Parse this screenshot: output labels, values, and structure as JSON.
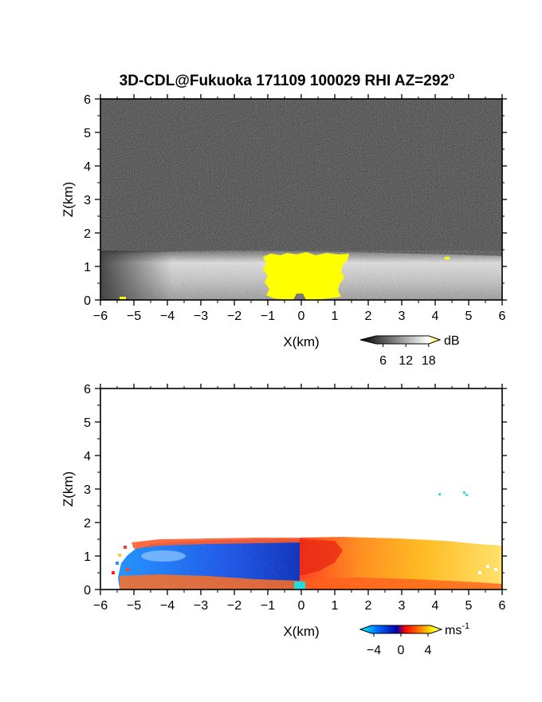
{
  "title": "3D-CDL@Fukuoka 171109 100029 RHI AZ=292",
  "title_suffix": "o",
  "chart_data": [
    {
      "type": "heatmap",
      "panel": "top",
      "quantity": "backscatter",
      "xlabel": "X(km)",
      "ylabel": "Z(km)",
      "xlim": [
        -6,
        6
      ],
      "ylim": [
        0,
        6
      ],
      "xticks": [
        -6,
        -5,
        -4,
        -3,
        -2,
        -1,
        0,
        1,
        2,
        3,
        4,
        5,
        6
      ],
      "yticks": [
        0,
        1,
        2,
        3,
        4,
        5,
        6
      ],
      "colorbar": {
        "unit": "dB",
        "ticks": [
          6,
          12,
          18
        ],
        "range": [
          0,
          21
        ],
        "colors": [
          "#000000",
          "#ffffff",
          "#ffff00"
        ]
      },
      "features": {
        "noise_floor_below_1_3km": "light grey to white",
        "noise_above_1_4km": "dark grey speckle",
        "boundary_layer_top_km": 1.35,
        "saturated_region": {
          "color": "#ffff00",
          "x_range": [
            -1.2,
            1.5
          ],
          "z_top": 1.35
        }
      }
    },
    {
      "type": "heatmap",
      "panel": "bottom",
      "quantity": "radial velocity",
      "xlabel": "X(km)",
      "ylabel": "Z(km)",
      "xlim": [
        -6,
        6
      ],
      "ylim": [
        0,
        6
      ],
      "xticks": [
        -6,
        -5,
        -4,
        -3,
        -2,
        -1,
        0,
        1,
        2,
        3,
        4,
        5,
        6
      ],
      "yticks": [
        0,
        1,
        2,
        3,
        4,
        5,
        6
      ],
      "colorbar": {
        "unit": "ms",
        "unit_exp": "-1",
        "ticks": [
          -4,
          0,
          4
        ],
        "range": [
          -6,
          6
        ],
        "colors": [
          "#00ffff",
          "#0066ff",
          "#0000aa",
          "#ff0000",
          "#ff8800",
          "#ffff00",
          "#ffffff"
        ]
      },
      "features": {
        "negative_side_x_range": [
          -5.6,
          0
        ],
        "positive_side_x_range": [
          0,
          6
        ],
        "layer_top_km": 1.45,
        "isolated_points": [
          {
            "x": 4.1,
            "z": 2.85
          },
          {
            "x": 4.8,
            "z": 2.9
          }
        ]
      }
    }
  ]
}
